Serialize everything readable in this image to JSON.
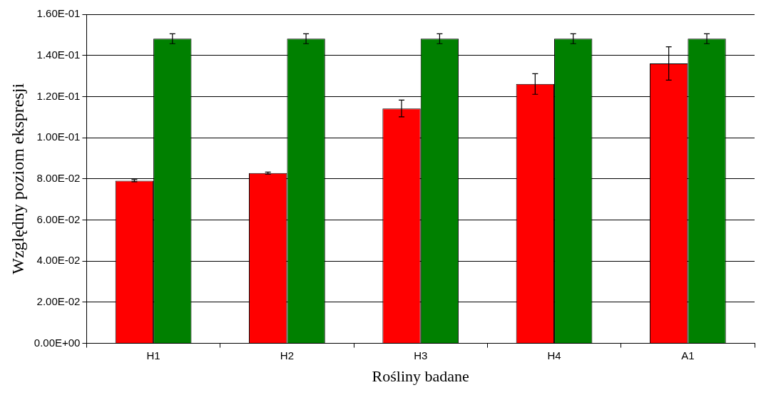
{
  "chart_data": {
    "type": "bar",
    "xlabel": "Rośliny badane",
    "ylabel": "Względny poziom ekspresji",
    "categories": [
      "H1",
      "H2",
      "H3",
      "H4",
      "A1"
    ],
    "series": [
      {
        "color": "#ff0000",
        "values": [
          0.0791,
          0.0828,
          0.1142,
          0.1261,
          0.1361
        ],
        "errors": [
          0.0005,
          0.0005,
          0.0041,
          0.005,
          0.0081
        ]
      },
      {
        "color": "#008000",
        "values": [
          0.1481,
          0.1481,
          0.1481,
          0.1481,
          0.1481
        ],
        "errors": [
          0.0024,
          0.0024,
          0.0024,
          0.0024,
          0.0024
        ]
      }
    ],
    "ylim": [
      0,
      0.16
    ],
    "yticks": [
      {
        "value": 0,
        "label": "0.00E+00"
      },
      {
        "value": 0.02,
        "label": "2.00E-02"
      },
      {
        "value": 0.04,
        "label": "4.00E-02"
      },
      {
        "value": 0.06,
        "label": "6.00E-02"
      },
      {
        "value": 0.08,
        "label": "8.00E-02"
      },
      {
        "value": 0.1,
        "label": "1.00E-01"
      },
      {
        "value": 0.12,
        "label": "1.20E-01"
      },
      {
        "value": 0.14,
        "label": "1.40E-01"
      },
      {
        "value": 0.16,
        "label": "1.60E-01"
      }
    ],
    "grid": "y",
    "legend": false
  }
}
